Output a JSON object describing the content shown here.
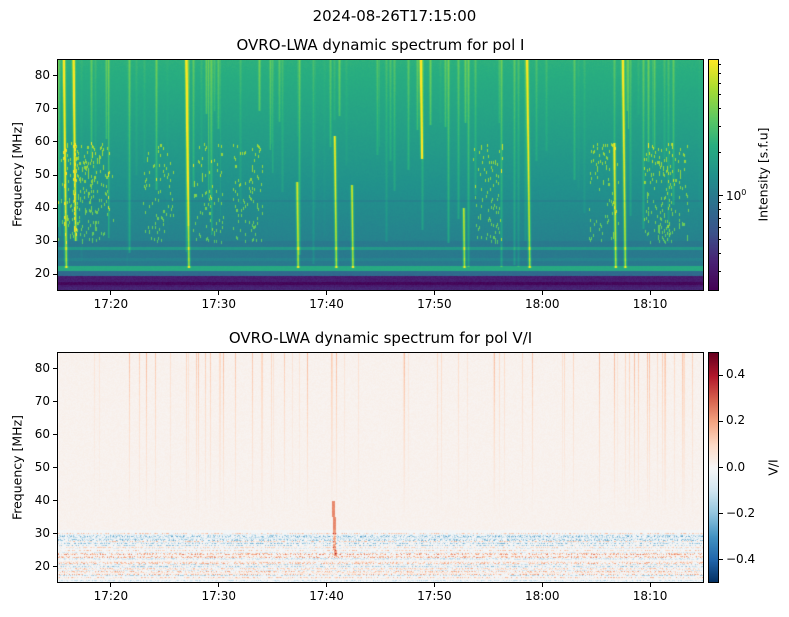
{
  "figure": {
    "suptitle": "2024-08-26T17:15:00"
  },
  "chart_data": [
    {
      "type": "heatmap",
      "title": "OVRO-LWA dynamic spectrum for pol I",
      "xlabel": "",
      "ylabel": "Frequency [MHz]",
      "x_range": [
        "17:15",
        "18:15"
      ],
      "x_ticks": [
        "17:20",
        "17:30",
        "17:40",
        "17:50",
        "18:00",
        "18:10"
      ],
      "ylim": [
        15,
        85
      ],
      "y_ticks": [
        20,
        30,
        40,
        50,
        60,
        70,
        80
      ],
      "colormap": "viridis",
      "color_scale": "log",
      "colorbar": {
        "label": "Intensity [s.f.u]",
        "range": [
          0.22,
          8.8
        ],
        "ticks": [
          "10^0"
        ],
        "tick_values": [
          1
        ]
      },
      "bright_bursts": [
        {
          "time": "17:15.5",
          "freq": [
            22,
            85
          ]
        },
        {
          "time": "17:16.4",
          "freq": [
            30,
            85
          ]
        },
        {
          "time": "17:26.9",
          "freq": [
            22,
            85
          ]
        },
        {
          "time": "17:37.2",
          "freq": [
            22,
            48
          ]
        },
        {
          "time": "17:40.7",
          "freq": [
            22,
            62
          ]
        },
        {
          "time": "17:42.3",
          "freq": [
            22,
            47
          ]
        },
        {
          "time": "17:48.7",
          "freq": [
            55,
            85
          ]
        },
        {
          "time": "17:52.7",
          "freq": [
            22,
            40
          ]
        },
        {
          "time": "17:58.6",
          "freq": [
            22,
            85
          ]
        },
        {
          "time": "18:06.7",
          "freq": [
            22,
            60
          ]
        },
        {
          "time": "18:07.5",
          "freq": [
            22,
            85
          ]
        }
      ]
    },
    {
      "type": "heatmap",
      "title": "OVRO-LWA dynamic spectrum for pol V/I",
      "xlabel": "",
      "ylabel": "Frequency [MHz]",
      "x_range": [
        "17:15",
        "18:15"
      ],
      "x_ticks": [
        "17:20",
        "17:30",
        "17:40",
        "17:50",
        "18:00",
        "18:10"
      ],
      "ylim": [
        15,
        85
      ],
      "y_ticks": [
        20,
        30,
        40,
        50,
        60,
        70,
        80
      ],
      "colormap": "RdBu_r",
      "color_scale": "linear",
      "colorbar": {
        "label": "V/I",
        "range": [
          -0.5,
          0.5
        ],
        "ticks": [
          "0.4",
          "0.2",
          "0.0",
          "−0.2",
          "−0.4"
        ],
        "tick_values": [
          0.4,
          0.2,
          0.0,
          -0.2,
          -0.4
        ]
      }
    }
  ]
}
